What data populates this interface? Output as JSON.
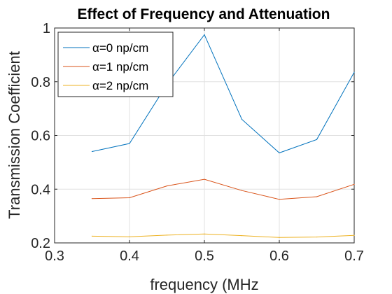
{
  "chart_data": {
    "type": "line",
    "title": "Effect of Frequency and Attenuation",
    "xlabel": "frequency (MHz",
    "ylabel": "Transmission Coefficient",
    "xlim": [
      0.3,
      0.7
    ],
    "ylim": [
      0.2,
      1.0
    ],
    "xticks": [
      "0.3",
      "0.4",
      "0.5",
      "0.6",
      "0.7"
    ],
    "yticks": [
      "0.2",
      "0.4",
      "0.6",
      "0.8",
      "1"
    ],
    "x": [
      0.35,
      0.4,
      0.45,
      0.5,
      0.55,
      0.6,
      0.65,
      0.7
    ],
    "grid": true,
    "legend_position": "top-left",
    "series": [
      {
        "name": "α=0 np/cm",
        "color": "#0072BD",
        "values": [
          0.54,
          0.57,
          0.79,
          0.975,
          0.66,
          0.535,
          0.585,
          0.835
        ]
      },
      {
        "name": "α=1 np/cm",
        "color": "#D95319",
        "values": [
          0.365,
          0.368,
          0.412,
          0.437,
          0.395,
          0.362,
          0.372,
          0.418
        ]
      },
      {
        "name": "α=2 np/cm",
        "color": "#EDB120",
        "values": [
          0.225,
          0.223,
          0.229,
          0.233,
          0.227,
          0.22,
          0.222,
          0.228
        ]
      }
    ]
  }
}
